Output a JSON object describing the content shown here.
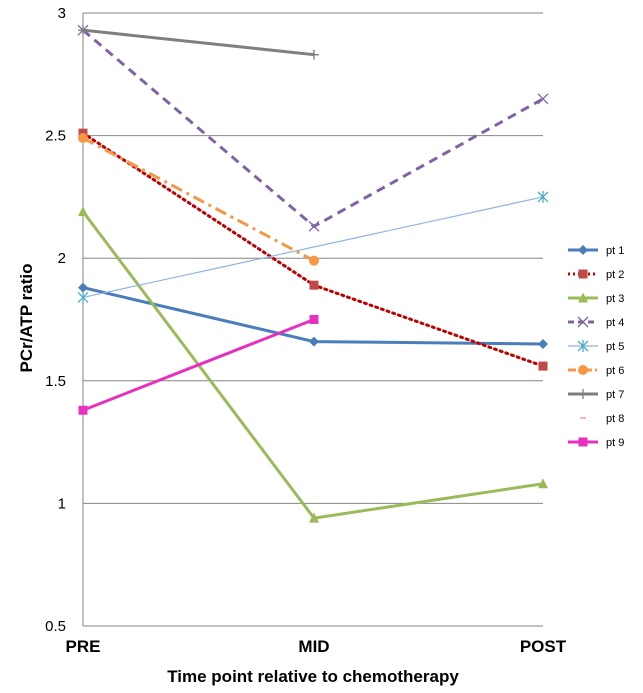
{
  "chart_data": {
    "type": "line",
    "title": "",
    "xlabel": "Time point relative to chemotherapy",
    "ylabel": "PCr/ATP ratio",
    "categories": [
      "PRE",
      "MID",
      "POST"
    ],
    "ylim": [
      0.5,
      3
    ],
    "yticks": [
      0.5,
      1,
      1.5,
      2,
      2.5,
      3
    ],
    "ytick_labels": [
      "0.5",
      "1",
      "1.5",
      "2",
      "2.5",
      "3"
    ],
    "grid": true,
    "legend_position": "right",
    "series": [
      {
        "name": "pt 1",
        "values": [
          1.88,
          1.66,
          1.65
        ],
        "color": "#4A7EBB",
        "dash": "solid",
        "marker": "diamond",
        "width": 3
      },
      {
        "name": "pt 2",
        "values": [
          2.51,
          1.89,
          1.56
        ],
        "color": "#C00000",
        "marker_color": "#BE4B48",
        "dash": "dot",
        "marker": "square",
        "width": 3
      },
      {
        "name": "pt 3",
        "values": [
          2.19,
          0.94,
          1.08
        ],
        "color": "#9BBB59",
        "dash": "solid",
        "marker": "triangle",
        "width": 3
      },
      {
        "name": "pt 4",
        "values": [
          2.93,
          2.13,
          2.65
        ],
        "color": "#8064A2",
        "dash": "dash",
        "marker": "x",
        "width": 3
      },
      {
        "name": "pt 5",
        "values": [
          1.84,
          null,
          2.25
        ],
        "color": "#4BACC6",
        "line_color": "#8EB4E3",
        "dash": "solid",
        "marker": "star",
        "width": 1.2
      },
      {
        "name": "pt 6",
        "values": [
          2.49,
          1.99,
          null
        ],
        "color": "#F79646",
        "dash": "dashdot",
        "marker": "circle",
        "width": 3
      },
      {
        "name": "pt 7",
        "values": [
          2.93,
          2.83,
          null
        ],
        "color": "#7F7F7F",
        "dash": "solid",
        "marker": "plus",
        "width": 3
      },
      {
        "name": "pt 8",
        "values": [
          null,
          null,
          null
        ],
        "color": "#F2A1A1",
        "dash": "dash",
        "marker": "none",
        "width": 1.5
      },
      {
        "name": "pt 9",
        "values": [
          1.38,
          1.75,
          null
        ],
        "color": "#E830C0",
        "dash": "solid",
        "marker": "square",
        "width": 3
      }
    ]
  }
}
